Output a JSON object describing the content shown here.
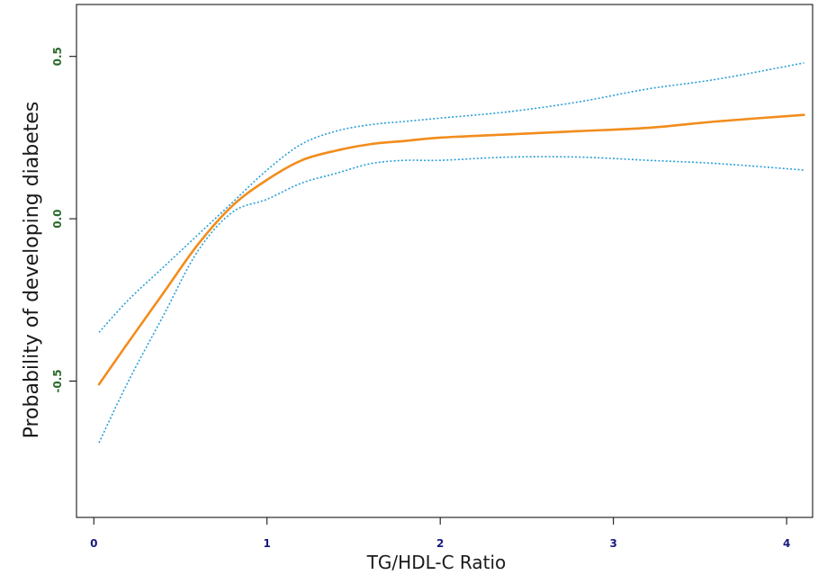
{
  "chart_data": {
    "type": "line",
    "title": "",
    "xlabel": "TG/HDL-C Ratio",
    "ylabel": "Probability of developing diabetes",
    "xlim": [
      -0.1,
      4.15
    ],
    "ylim": [
      -0.92,
      0.66
    ],
    "x_ticks": [
      0,
      1,
      2,
      3,
      4
    ],
    "y_ticks": [
      -0.5,
      0.0,
      0.5
    ],
    "x_tick_labels": [
      "0",
      "1",
      "2",
      "3",
      "4"
    ],
    "y_tick_labels": [
      "-0.5",
      "0.0",
      "0.5"
    ],
    "grid": false,
    "legend": "none",
    "colors": {
      "estimate": "#f28c1c",
      "ci": "#2a9fd8",
      "x_tick_label": "#1a1a80",
      "y_tick_label": "#2a6a2a"
    },
    "series": [
      {
        "role": "estimate",
        "style": "solid",
        "x": [
          0.03,
          0.2,
          0.4,
          0.6,
          0.8,
          1.0,
          1.2,
          1.4,
          1.6,
          1.8,
          2.0,
          2.4,
          2.8,
          3.2,
          3.6,
          4.1
        ],
        "y": [
          -0.51,
          -0.38,
          -0.23,
          -0.08,
          0.04,
          0.12,
          0.18,
          0.21,
          0.23,
          0.24,
          0.25,
          0.26,
          0.27,
          0.28,
          0.3,
          0.32
        ]
      },
      {
        "role": "ci_upper",
        "style": "dotted",
        "x": [
          0.03,
          0.2,
          0.4,
          0.6,
          0.8,
          1.0,
          1.2,
          1.4,
          1.6,
          1.8,
          2.0,
          2.4,
          2.8,
          3.2,
          3.6,
          4.1
        ],
        "y": [
          -0.35,
          -0.25,
          -0.15,
          -0.05,
          0.05,
          0.15,
          0.23,
          0.27,
          0.29,
          0.3,
          0.31,
          0.33,
          0.36,
          0.4,
          0.43,
          0.48
        ]
      },
      {
        "role": "ci_lower",
        "style": "dotted",
        "x": [
          0.03,
          0.2,
          0.4,
          0.6,
          0.8,
          1.0,
          1.2,
          1.4,
          1.6,
          1.8,
          2.0,
          2.4,
          2.8,
          3.2,
          3.6,
          4.1
        ],
        "y": [
          -0.69,
          -0.5,
          -0.3,
          -0.1,
          0.02,
          0.06,
          0.11,
          0.14,
          0.17,
          0.18,
          0.18,
          0.19,
          0.19,
          0.18,
          0.17,
          0.15
        ]
      }
    ]
  }
}
